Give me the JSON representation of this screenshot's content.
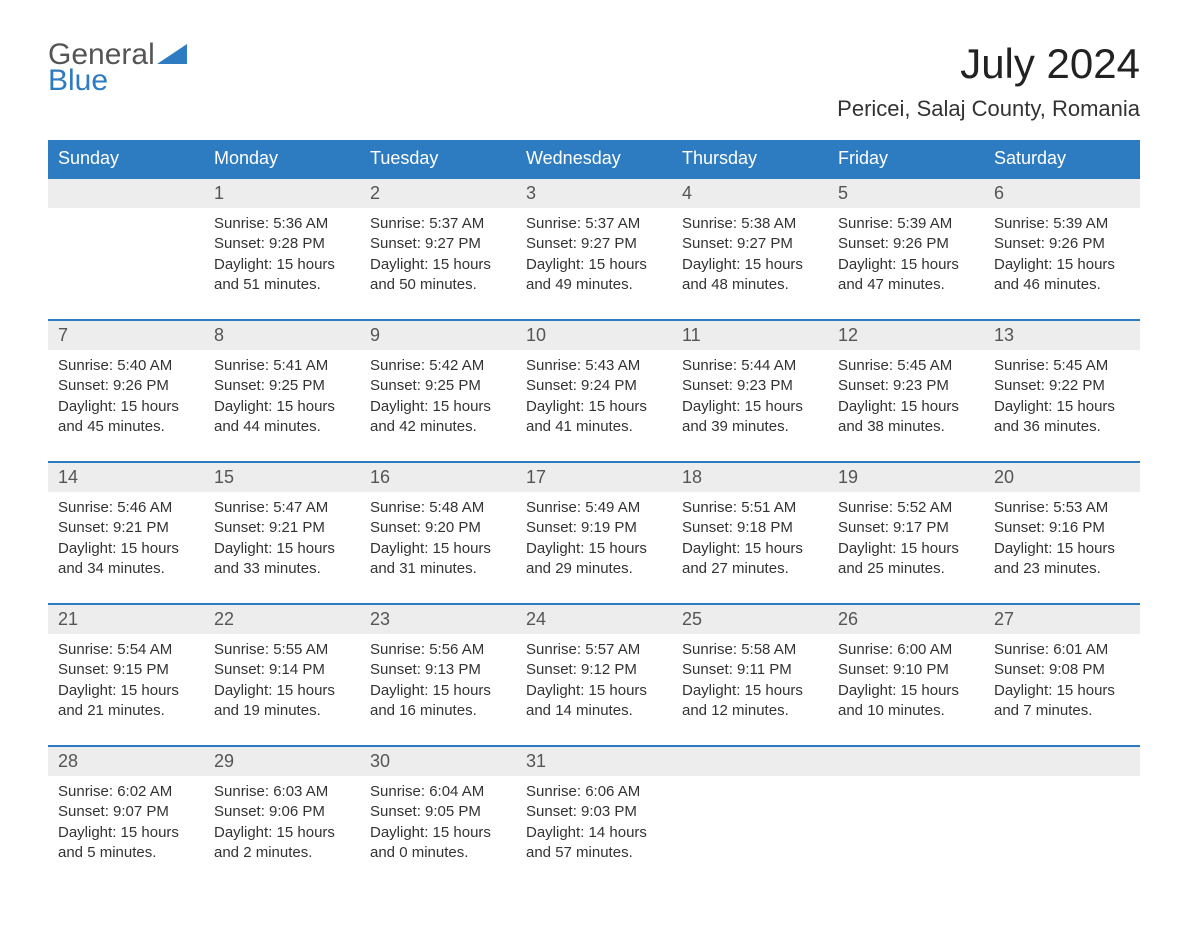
{
  "logo": {
    "top": "General",
    "bottom": "Blue",
    "triangle_color": "#2d7bc0"
  },
  "title": "July 2024",
  "location": "Pericei, Salaj County, Romania",
  "day_headers": [
    "Sunday",
    "Monday",
    "Tuesday",
    "Wednesday",
    "Thursday",
    "Friday",
    "Saturday"
  ],
  "colors": {
    "header_bg": "#2d7bc0",
    "header_text": "#ffffff",
    "daynum_bg": "#ededed",
    "daynum_text": "#555555",
    "body_text": "#333333",
    "rule": "#2d7bc0",
    "page_bg": "#ffffff"
  },
  "typography": {
    "title_fontsize": 42,
    "location_fontsize": 22,
    "dayhead_fontsize": 18,
    "daynum_fontsize": 18,
    "info_fontsize": 15
  },
  "weeks": [
    [
      {
        "num": "",
        "sunrise": "",
        "sunset": "",
        "daylight": ""
      },
      {
        "num": "1",
        "sunrise": "Sunrise: 5:36 AM",
        "sunset": "Sunset: 9:28 PM",
        "daylight": "Daylight: 15 hours and 51 minutes."
      },
      {
        "num": "2",
        "sunrise": "Sunrise: 5:37 AM",
        "sunset": "Sunset: 9:27 PM",
        "daylight": "Daylight: 15 hours and 50 minutes."
      },
      {
        "num": "3",
        "sunrise": "Sunrise: 5:37 AM",
        "sunset": "Sunset: 9:27 PM",
        "daylight": "Daylight: 15 hours and 49 minutes."
      },
      {
        "num": "4",
        "sunrise": "Sunrise: 5:38 AM",
        "sunset": "Sunset: 9:27 PM",
        "daylight": "Daylight: 15 hours and 48 minutes."
      },
      {
        "num": "5",
        "sunrise": "Sunrise: 5:39 AM",
        "sunset": "Sunset: 9:26 PM",
        "daylight": "Daylight: 15 hours and 47 minutes."
      },
      {
        "num": "6",
        "sunrise": "Sunrise: 5:39 AM",
        "sunset": "Sunset: 9:26 PM",
        "daylight": "Daylight: 15 hours and 46 minutes."
      }
    ],
    [
      {
        "num": "7",
        "sunrise": "Sunrise: 5:40 AM",
        "sunset": "Sunset: 9:26 PM",
        "daylight": "Daylight: 15 hours and 45 minutes."
      },
      {
        "num": "8",
        "sunrise": "Sunrise: 5:41 AM",
        "sunset": "Sunset: 9:25 PM",
        "daylight": "Daylight: 15 hours and 44 minutes."
      },
      {
        "num": "9",
        "sunrise": "Sunrise: 5:42 AM",
        "sunset": "Sunset: 9:25 PM",
        "daylight": "Daylight: 15 hours and 42 minutes."
      },
      {
        "num": "10",
        "sunrise": "Sunrise: 5:43 AM",
        "sunset": "Sunset: 9:24 PM",
        "daylight": "Daylight: 15 hours and 41 minutes."
      },
      {
        "num": "11",
        "sunrise": "Sunrise: 5:44 AM",
        "sunset": "Sunset: 9:23 PM",
        "daylight": "Daylight: 15 hours and 39 minutes."
      },
      {
        "num": "12",
        "sunrise": "Sunrise: 5:45 AM",
        "sunset": "Sunset: 9:23 PM",
        "daylight": "Daylight: 15 hours and 38 minutes."
      },
      {
        "num": "13",
        "sunrise": "Sunrise: 5:45 AM",
        "sunset": "Sunset: 9:22 PM",
        "daylight": "Daylight: 15 hours and 36 minutes."
      }
    ],
    [
      {
        "num": "14",
        "sunrise": "Sunrise: 5:46 AM",
        "sunset": "Sunset: 9:21 PM",
        "daylight": "Daylight: 15 hours and 34 minutes."
      },
      {
        "num": "15",
        "sunrise": "Sunrise: 5:47 AM",
        "sunset": "Sunset: 9:21 PM",
        "daylight": "Daylight: 15 hours and 33 minutes."
      },
      {
        "num": "16",
        "sunrise": "Sunrise: 5:48 AM",
        "sunset": "Sunset: 9:20 PM",
        "daylight": "Daylight: 15 hours and 31 minutes."
      },
      {
        "num": "17",
        "sunrise": "Sunrise: 5:49 AM",
        "sunset": "Sunset: 9:19 PM",
        "daylight": "Daylight: 15 hours and 29 minutes."
      },
      {
        "num": "18",
        "sunrise": "Sunrise: 5:51 AM",
        "sunset": "Sunset: 9:18 PM",
        "daylight": "Daylight: 15 hours and 27 minutes."
      },
      {
        "num": "19",
        "sunrise": "Sunrise: 5:52 AM",
        "sunset": "Sunset: 9:17 PM",
        "daylight": "Daylight: 15 hours and 25 minutes."
      },
      {
        "num": "20",
        "sunrise": "Sunrise: 5:53 AM",
        "sunset": "Sunset: 9:16 PM",
        "daylight": "Daylight: 15 hours and 23 minutes."
      }
    ],
    [
      {
        "num": "21",
        "sunrise": "Sunrise: 5:54 AM",
        "sunset": "Sunset: 9:15 PM",
        "daylight": "Daylight: 15 hours and 21 minutes."
      },
      {
        "num": "22",
        "sunrise": "Sunrise: 5:55 AM",
        "sunset": "Sunset: 9:14 PM",
        "daylight": "Daylight: 15 hours and 19 minutes."
      },
      {
        "num": "23",
        "sunrise": "Sunrise: 5:56 AM",
        "sunset": "Sunset: 9:13 PM",
        "daylight": "Daylight: 15 hours and 16 minutes."
      },
      {
        "num": "24",
        "sunrise": "Sunrise: 5:57 AM",
        "sunset": "Sunset: 9:12 PM",
        "daylight": "Daylight: 15 hours and 14 minutes."
      },
      {
        "num": "25",
        "sunrise": "Sunrise: 5:58 AM",
        "sunset": "Sunset: 9:11 PM",
        "daylight": "Daylight: 15 hours and 12 minutes."
      },
      {
        "num": "26",
        "sunrise": "Sunrise: 6:00 AM",
        "sunset": "Sunset: 9:10 PM",
        "daylight": "Daylight: 15 hours and 10 minutes."
      },
      {
        "num": "27",
        "sunrise": "Sunrise: 6:01 AM",
        "sunset": "Sunset: 9:08 PM",
        "daylight": "Daylight: 15 hours and 7 minutes."
      }
    ],
    [
      {
        "num": "28",
        "sunrise": "Sunrise: 6:02 AM",
        "sunset": "Sunset: 9:07 PM",
        "daylight": "Daylight: 15 hours and 5 minutes."
      },
      {
        "num": "29",
        "sunrise": "Sunrise: 6:03 AM",
        "sunset": "Sunset: 9:06 PM",
        "daylight": "Daylight: 15 hours and 2 minutes."
      },
      {
        "num": "30",
        "sunrise": "Sunrise: 6:04 AM",
        "sunset": "Sunset: 9:05 PM",
        "daylight": "Daylight: 15 hours and 0 minutes."
      },
      {
        "num": "31",
        "sunrise": "Sunrise: 6:06 AM",
        "sunset": "Sunset: 9:03 PM",
        "daylight": "Daylight: 14 hours and 57 minutes."
      },
      {
        "num": "",
        "sunrise": "",
        "sunset": "",
        "daylight": ""
      },
      {
        "num": "",
        "sunrise": "",
        "sunset": "",
        "daylight": ""
      },
      {
        "num": "",
        "sunrise": "",
        "sunset": "",
        "daylight": ""
      }
    ]
  ]
}
